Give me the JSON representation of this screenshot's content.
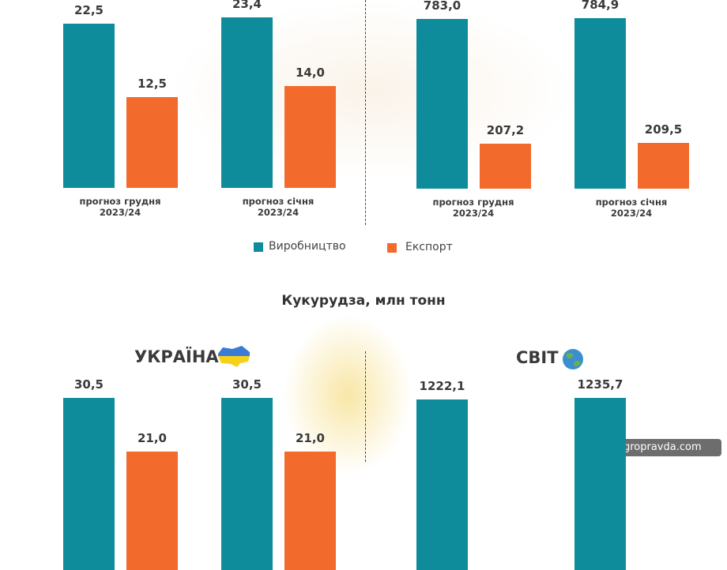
{
  "chart_data": [
    {
      "type": "bar",
      "categories": [
        "прогноз грудня 2023/24",
        "прогноз січня 2023/24"
      ],
      "series": [
        {
          "name": "Виробництво",
          "color": "#0e8c9b",
          "values": [
            22.5,
            23.4
          ],
          "value_labels": [
            "22,5",
            "23,4"
          ]
        },
        {
          "name": "Експорт",
          "color": "#f26a2c",
          "values": [
            12.5,
            14.0
          ],
          "value_labels": [
            "12,5",
            "14,0"
          ]
        }
      ]
    },
    {
      "type": "bar",
      "categories": [
        "прогноз грудня 2023/24",
        "прогноз січня 2023/24"
      ],
      "series": [
        {
          "color": "#0e8c9b",
          "values": [
            783.0,
            784.9
          ],
          "value_labels": [
            "783,0",
            "784,9"
          ]
        },
        {
          "color": "#f26a2c",
          "values": [
            207.2,
            209.5
          ],
          "value_labels": [
            "207,2",
            "209,5"
          ]
        }
      ]
    },
    {
      "type": "bar",
      "title": "Кукурудза, млн тонн",
      "subtitle": "УКРАЇНА",
      "series": [
        {
          "color": "#0e8c9b",
          "values": [
            30.5,
            30.5
          ],
          "value_labels": [
            "30,5",
            "30,5"
          ]
        },
        {
          "color": "#f26a2c",
          "values": [
            21.0,
            21.0
          ],
          "value_labels": [
            "21,0",
            "21,0"
          ]
        }
      ]
    },
    {
      "type": "bar",
      "subtitle": "СВІТ",
      "series": [
        {
          "color": "#0e8c9b",
          "values": [
            1222.1,
            1235.7
          ],
          "value_labels": [
            "1222,1",
            "1235,7"
          ]
        }
      ]
    }
  ],
  "watermark": "agropravda.com"
}
